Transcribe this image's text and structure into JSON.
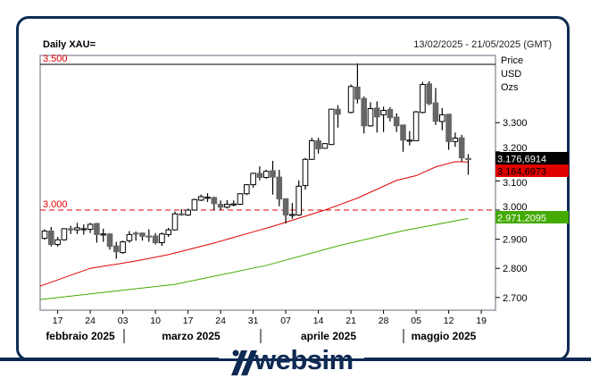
{
  "header": {
    "title": "Daily XAU=",
    "date_range": "13/02/2025 - 21/05/2025 (GMT)"
  },
  "brand": {
    "name": "websim",
    "color": "#0f2a52"
  },
  "chart_data": {
    "type": "candlestick",
    "title": "Daily XAU=",
    "axis_labels": [
      "Price",
      "USD",
      "Ozs"
    ],
    "ylim": [
      2660,
      3520
    ],
    "y_ticks": [
      {
        "v": 3300,
        "l": "3.300"
      },
      {
        "v": 3200,
        "l": "3.200"
      },
      {
        "v": 3100,
        "l": "3.100"
      },
      {
        "v": 3000,
        "l": "3.000"
      },
      {
        "v": 2900,
        "l": "2.900"
      },
      {
        "v": 2800,
        "l": "2.800"
      },
      {
        "v": 2700,
        "l": "2.700"
      }
    ],
    "x_ticks": [
      {
        "d": "2025-02-17",
        "l": "17"
      },
      {
        "d": "2025-02-24",
        "l": "24"
      },
      {
        "d": "2025-03-03",
        "l": "03"
      },
      {
        "d": "2025-03-10",
        "l": "10"
      },
      {
        "d": "2025-03-17",
        "l": "17"
      },
      {
        "d": "2025-03-24",
        "l": "24"
      },
      {
        "d": "2025-03-31",
        "l": "31"
      },
      {
        "d": "2025-04-07",
        "l": "07"
      },
      {
        "d": "2025-04-14",
        "l": "14"
      },
      {
        "d": "2025-04-21",
        "l": "21"
      },
      {
        "d": "2025-04-28",
        "l": "28"
      },
      {
        "d": "2025-05-05",
        "l": "05"
      },
      {
        "d": "2025-05-12",
        "l": "12"
      },
      {
        "d": "2025-05-19",
        "l": "19"
      }
    ],
    "months": [
      {
        "label": "febbraio 2025",
        "start": "2025-02-13"
      },
      {
        "label": "marzo 2025",
        "start": "2025-03-03"
      },
      {
        "label": "aprile 2025",
        "start": "2025-04-01"
      },
      {
        "label": "maggio 2025",
        "start": "2025-05-01"
      }
    ],
    "hlines": [
      {
        "value": 3500,
        "label": "3.500",
        "color": "#000000",
        "style": "solid",
        "label_color": "#e00000"
      },
      {
        "value": 3000,
        "label": "3.000",
        "color": "#e00000",
        "style": "dashed",
        "label_color": "#e00000"
      }
    ],
    "badges": [
      {
        "value": 3176.6914,
        "label": "3.176,6914",
        "bg": "#000000",
        "fg": "#ffffff"
      },
      {
        "value": 3164.6973,
        "label": "3.164,6973",
        "bg": "#e00000",
        "fg": "#000000"
      },
      {
        "value": 2971.2095,
        "label": "2.971,2095",
        "bg": "#44aa00",
        "fg": "#ffffff"
      }
    ],
    "colors": {
      "up": "#ffffff",
      "down": "#666666",
      "ma_short": "#e00000",
      "ma_long": "#44aa00"
    },
    "candles_columns": [
      "date",
      "open",
      "high",
      "low",
      "close"
    ],
    "candles": [
      [
        "2025-02-13",
        2903,
        2934,
        2898,
        2928
      ],
      [
        "2025-02-14",
        2928,
        2942,
        2875,
        2882
      ],
      [
        "2025-02-17",
        2882,
        2908,
        2875,
        2898
      ],
      [
        "2025-02-18",
        2898,
        2938,
        2895,
        2936
      ],
      [
        "2025-02-19",
        2936,
        2946,
        2918,
        2932
      ],
      [
        "2025-02-20",
        2932,
        2956,
        2918,
        2939
      ],
      [
        "2025-02-21",
        2935,
        2951,
        2916,
        2936
      ],
      [
        "2025-02-24",
        2934,
        2956,
        2921,
        2951
      ],
      [
        "2025-02-25",
        2954,
        2956,
        2888,
        2916
      ],
      [
        "2025-02-26",
        2918,
        2936,
        2891,
        2918
      ],
      [
        "2025-02-27",
        2918,
        2921,
        2864,
        2875
      ],
      [
        "2025-02-28",
        2877,
        2891,
        2833,
        2857
      ],
      [
        "2025-03-03",
        2854,
        2895,
        2850,
        2891
      ],
      [
        "2025-03-04",
        2895,
        2928,
        2888,
        2916
      ],
      [
        "2025-03-05",
        2921,
        2926,
        2895,
        2918
      ],
      [
        "2025-03-06",
        2921,
        2923,
        2895,
        2910
      ],
      [
        "2025-03-07",
        2911,
        2934,
        2891,
        2910
      ],
      [
        "2025-03-10",
        2911,
        2921,
        2882,
        2888
      ],
      [
        "2025-03-11",
        2888,
        2923,
        2877,
        2918
      ],
      [
        "2025-03-12",
        2916,
        2939,
        2908,
        2932
      ],
      [
        "2025-03-13",
        2932,
        2995,
        2930,
        2987
      ],
      [
        "2025-03-14",
        2987,
        3003,
        2980,
        2985
      ],
      [
        "2025-03-17",
        2983,
        3005,
        2980,
        3000
      ],
      [
        "2025-03-18",
        3000,
        3039,
        2998,
        3036
      ],
      [
        "2025-03-19",
        3034,
        3053,
        3031,
        3046
      ],
      [
        "2025-03-20",
        3043,
        3058,
        3028,
        3044
      ],
      [
        "2025-03-21",
        3043,
        3046,
        3000,
        3022
      ],
      [
        "2025-03-24",
        3020,
        3033,
        3000,
        3010
      ],
      [
        "2025-03-25",
        3010,
        3034,
        3005,
        3020
      ],
      [
        "2025-03-26",
        3020,
        3033,
        3013,
        3021
      ],
      [
        "2025-03-27",
        3020,
        3058,
        3017,
        3056
      ],
      [
        "2025-03-28",
        3056,
        3089,
        3051,
        3087
      ],
      [
        "2025-03-31",
        3087,
        3128,
        3077,
        3126
      ],
      [
        "2025-04-01",
        3126,
        3150,
        3102,
        3112
      ],
      [
        "2025-04-02",
        3112,
        3138,
        3107,
        3133
      ],
      [
        "2025-04-03",
        3135,
        3169,
        3053,
        3113
      ],
      [
        "2025-04-04",
        3113,
        3138,
        3013,
        3038
      ],
      [
        "2025-04-07",
        3039,
        3039,
        2954,
        2983
      ],
      [
        "2025-04-08",
        2985,
        3024,
        2970,
        2985
      ],
      [
        "2025-04-09",
        2983,
        3102,
        2980,
        3082
      ],
      [
        "2025-04-10",
        3084,
        3179,
        3070,
        3174
      ],
      [
        "2025-04-11",
        3174,
        3248,
        3172,
        3238
      ],
      [
        "2025-04-14",
        3238,
        3248,
        3194,
        3210
      ],
      [
        "2025-04-15",
        3212,
        3230,
        3210,
        3228
      ],
      [
        "2025-04-16",
        3225,
        3348,
        3223,
        3346
      ],
      [
        "2025-04-17",
        3346,
        3360,
        3283,
        3329
      ],
      [
        "2025-04-21",
        3335,
        3431,
        3332,
        3424
      ],
      [
        "2025-04-22",
        3422,
        3503,
        3366,
        3381
      ],
      [
        "2025-04-23",
        3383,
        3390,
        3263,
        3289
      ],
      [
        "2025-04-24",
        3289,
        3370,
        3286,
        3348
      ],
      [
        "2025-04-25",
        3350,
        3373,
        3266,
        3320
      ],
      [
        "2025-04-28",
        3327,
        3355,
        3268,
        3342
      ],
      [
        "2025-04-29",
        3345,
        3353,
        3304,
        3317
      ],
      [
        "2025-04-30",
        3319,
        3332,
        3268,
        3289
      ],
      [
        "2025-05-01",
        3292,
        3292,
        3200,
        3240
      ],
      [
        "2025-05-02",
        3240,
        3271,
        3222,
        3240
      ],
      [
        "2025-05-05",
        3238,
        3340,
        3238,
        3337
      ],
      [
        "2025-05-06",
        3335,
        3440,
        3332,
        3431
      ],
      [
        "2025-05-07",
        3433,
        3442,
        3360,
        3365
      ],
      [
        "2025-05-08",
        3368,
        3419,
        3292,
        3305
      ],
      [
        "2025-05-09",
        3304,
        3350,
        3274,
        3327
      ],
      [
        "2025-05-12",
        3329,
        3329,
        3207,
        3235
      ],
      [
        "2025-05-13",
        3235,
        3266,
        3217,
        3247
      ],
      [
        "2025-05-14",
        3248,
        3258,
        3166,
        3179
      ],
      [
        "2025-05-15",
        3177,
        3192,
        3121,
        3176.6914
      ]
    ],
    "ma_short": [
      [
        "2025-02-13",
        2739
      ],
      [
        "2025-02-24",
        2800
      ],
      [
        "2025-03-05",
        2825
      ],
      [
        "2025-03-12",
        2847
      ],
      [
        "2025-03-21",
        2887
      ],
      [
        "2025-03-31",
        2925
      ],
      [
        "2025-04-03",
        2944
      ],
      [
        "2025-04-15",
        3000
      ],
      [
        "2025-04-22",
        3041
      ],
      [
        "2025-04-30",
        3102
      ],
      [
        "2025-05-05",
        3118
      ],
      [
        "2025-05-08",
        3148
      ],
      [
        "2025-05-13",
        3166
      ],
      [
        "2025-05-15",
        3164.6973
      ]
    ],
    "ma_long": [
      [
        "2025-02-13",
        2693
      ],
      [
        "2025-03-13",
        2745
      ],
      [
        "2025-04-02",
        2810
      ],
      [
        "2025-04-17",
        2877
      ],
      [
        "2025-05-01",
        2929
      ],
      [
        "2025-05-15",
        2971.2095
      ]
    ]
  }
}
